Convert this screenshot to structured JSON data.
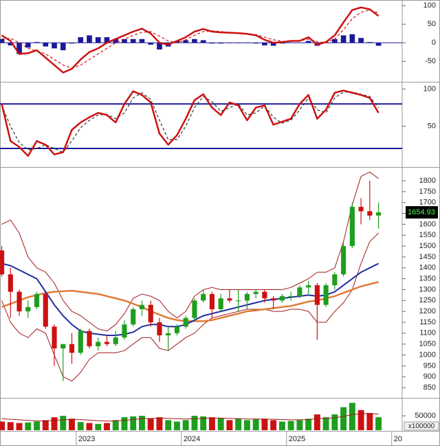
{
  "chart_data": [
    {
      "type": "macd",
      "ylim": [
        -103,
        115
      ],
      "yticks": [
        100,
        50,
        0,
        -50
      ],
      "zero_line_color": "#1a1a9a",
      "series": [
        {
          "style": "histogram",
          "color": "#1a1a9a",
          "values": [
            10,
            -7,
            -30,
            -13,
            2,
            -10,
            -15,
            -20,
            -2,
            15,
            20,
            15,
            15,
            10,
            10,
            10,
            10,
            -5,
            -18,
            -10,
            5,
            7,
            10,
            7,
            -2,
            -2,
            -1,
            -1,
            -1,
            -2,
            -7,
            -8,
            -2,
            1,
            0,
            5,
            -8,
            2,
            10,
            20,
            23,
            13,
            2,
            -8
          ]
        },
        {
          "style": "dashed",
          "color": "#cc1111",
          "values": [
            10,
            12,
            0,
            -15,
            -22,
            -30,
            -45,
            -60,
            -68,
            -60,
            -45,
            -30,
            -15,
            0,
            10,
            20,
            28,
            30,
            18,
            5,
            0,
            8,
            20,
            30,
            32,
            30,
            28,
            27,
            25,
            22,
            15,
            8,
            4,
            4,
            5,
            10,
            3,
            0,
            10,
            35,
            65,
            82,
            88,
            80
          ]
        },
        {
          "style": "solid",
          "color": "#cc1111",
          "values": [
            20,
            5,
            -30,
            -28,
            -20,
            -40,
            -60,
            -80,
            -70,
            -45,
            -25,
            -15,
            0,
            10,
            20,
            30,
            38,
            25,
            0,
            -5,
            5,
            15,
            30,
            37,
            30,
            28,
            27,
            26,
            24,
            20,
            8,
            0,
            2,
            5,
            5,
            15,
            -5,
            2,
            20,
            55,
            88,
            95,
            90,
            72
          ]
        }
      ]
    },
    {
      "type": "oscillator",
      "ylim": [
        -4,
        107
      ],
      "yticks": [
        100,
        50
      ],
      "levels": [
        80,
        20
      ],
      "level_color": "#1a1a9a",
      "series": [
        {
          "style": "dashed",
          "color": "#333333",
          "values": [
            78,
            50,
            28,
            18,
            20,
            25,
            20,
            15,
            30,
            48,
            58,
            65,
            66,
            60,
            68,
            88,
            95,
            86,
            58,
            32,
            32,
            50,
            75,
            90,
            83,
            70,
            75,
            80,
            65,
            68,
            77,
            62,
            54,
            58,
            72,
            88,
            72,
            68,
            88,
            96,
            96,
            93,
            90,
            75
          ]
        },
        {
          "style": "solid",
          "color": "#cc1111",
          "values": [
            80,
            30,
            22,
            10,
            30,
            25,
            12,
            15,
            45,
            55,
            62,
            68,
            65,
            55,
            80,
            97,
            92,
            82,
            40,
            25,
            38,
            60,
            85,
            93,
            75,
            65,
            82,
            78,
            58,
            75,
            78,
            52,
            56,
            60,
            80,
            92,
            60,
            72,
            95,
            98,
            95,
            92,
            88,
            68
          ]
        }
      ]
    },
    {
      "type": "candlestick",
      "ylim": [
        806,
        1860
      ],
      "yticks": [
        850,
        900,
        950,
        1000,
        1050,
        1100,
        1150,
        1200,
        1250,
        1300,
        1350,
        1400,
        1450,
        1500,
        1550,
        1600,
        1650,
        1700,
        1750,
        1800
      ],
      "up_color": "#1e9e1e",
      "down_color": "#cc1111",
      "open": [
        1480,
        1370,
        1290,
        1200,
        1220,
        1280,
        1130,
        1030,
        1050,
        1010,
        1110,
        1040,
        1060,
        1050,
        1080,
        1140,
        1210,
        1230,
        1150,
        1090,
        1100,
        1130,
        1170,
        1250,
        1280,
        1210,
        1260,
        1250,
        1250,
        1280,
        1290,
        1260,
        1250,
        1270,
        1270,
        1310,
        1320,
        1230,
        1320,
        1370,
        1500,
        1680,
        1660,
        1640
      ],
      "high": [
        1500,
        1400,
        1300,
        1250,
        1290,
        1290,
        1140,
        1050,
        1100,
        1120,
        1120,
        1080,
        1090,
        1110,
        1160,
        1220,
        1250,
        1250,
        1170,
        1130,
        1140,
        1180,
        1260,
        1300,
        1290,
        1280,
        1300,
        1300,
        1290,
        1300,
        1300,
        1270,
        1280,
        1290,
        1320,
        1340,
        1330,
        1330,
        1380,
        1520,
        1700,
        1720,
        1800,
        1700
      ],
      "low": [
        1360,
        1170,
        1180,
        1170,
        1210,
        1120,
        950,
        880,
        960,
        1000,
        1030,
        1020,
        1040,
        1040,
        1070,
        1130,
        1180,
        1130,
        1060,
        1020,
        1090,
        1120,
        1160,
        1240,
        1170,
        1200,
        1240,
        1200,
        1210,
        1260,
        1240,
        1210,
        1240,
        1250,
        1260,
        1280,
        1070,
        1220,
        1300,
        1360,
        1490,
        1600,
        1620,
        1580
      ],
      "close": [
        1370,
        1290,
        1200,
        1220,
        1280,
        1130,
        1030,
        1050,
        1010,
        1110,
        1040,
        1060,
        1050,
        1080,
        1140,
        1210,
        1230,
        1150,
        1090,
        1100,
        1130,
        1170,
        1250,
        1280,
        1210,
        1260,
        1250,
        1250,
        1280,
        1290,
        1260,
        1250,
        1270,
        1270,
        1310,
        1320,
        1230,
        1320,
        1370,
        1500,
        1680,
        1660,
        1640,
        1654.93
      ],
      "series": [
        {
          "color": "#a01818",
          "width": 1,
          "values": [
            1600,
            1620,
            1560,
            1450,
            1400,
            1380,
            1330,
            1250,
            1200,
            1180,
            1150,
            1120,
            1110,
            1140,
            1190,
            1260,
            1280,
            1270,
            1250,
            1200,
            1170,
            1200,
            1270,
            1300,
            1310,
            1300,
            1300,
            1300,
            1300,
            1300,
            1300,
            1300,
            1300,
            1310,
            1330,
            1350,
            1380,
            1380,
            1400,
            1520,
            1690,
            1820,
            1840,
            1810
          ]
        },
        {
          "color": "#a01818",
          "width": 1,
          "values": [
            1250,
            1150,
            1100,
            1080,
            1120,
            1100,
            1000,
            900,
            880,
            920,
            980,
            1010,
            1010,
            1010,
            1020,
            1050,
            1080,
            1080,
            1030,
            1020,
            1050,
            1080,
            1100,
            1140,
            1170,
            1180,
            1190,
            1200,
            1210,
            1210,
            1210,
            1200,
            1200,
            1210,
            1210,
            1200,
            1150,
            1150,
            1200,
            1240,
            1300,
            1420,
            1520,
            1560
          ]
        },
        {
          "color": "#e07b39",
          "width": 2.5,
          "values": [
            1220,
            1235,
            1250,
            1265,
            1275,
            1285,
            1290,
            1293,
            1295,
            1290,
            1285,
            1280,
            1270,
            1260,
            1250,
            1235,
            1220,
            1200,
            1185,
            1170,
            1160,
            1155,
            1155,
            1155,
            1160,
            1170,
            1180,
            1190,
            1200,
            1205,
            1210,
            1215,
            1220,
            1225,
            1235,
            1245,
            1250,
            1260,
            1270,
            1285,
            1300,
            1315,
            1325,
            1335
          ]
        },
        {
          "color": "#1f2ea0",
          "width": 2,
          "values": [
            1420,
            1410,
            1390,
            1370,
            1350,
            1290,
            1230,
            1180,
            1140,
            1110,
            1100,
            1095,
            1090,
            1090,
            1095,
            1105,
            1130,
            1140,
            1140,
            1130,
            1130,
            1140,
            1160,
            1180,
            1190,
            1200,
            1210,
            1220,
            1230,
            1240,
            1250,
            1255,
            1260,
            1265,
            1270,
            1275,
            1270,
            1275,
            1290,
            1320,
            1350,
            1380,
            1400,
            1420
          ]
        }
      ]
    },
    {
      "type": "volume",
      "ylim": [
        0,
        110000
      ],
      "yticks": [
        50000
      ],
      "unit_label": "x100000",
      "values": [
        30000,
        28000,
        25000,
        27000,
        30000,
        35000,
        45000,
        50000,
        40000,
        28000,
        25000,
        22000,
        25000,
        35000,
        45000,
        48000,
        50000,
        40000,
        45000,
        35000,
        30000,
        35000,
        50000,
        48000,
        45000,
        42000,
        35000,
        40000,
        35000,
        38000,
        40000,
        35000,
        30000,
        32000,
        35000,
        40000,
        55000,
        45000,
        55000,
        80000,
        95000,
        70000,
        60000,
        45000
      ],
      "series": [
        {
          "color": "#a01818",
          "width": 1,
          "values": [
            40000,
            38000,
            36000,
            34000,
            32000,
            32000,
            34000,
            36000,
            38000,
            37000,
            35000,
            33000,
            32000,
            32000,
            34000,
            37000,
            40000,
            41000,
            42000,
            41000,
            40000,
            39000,
            40000,
            41000,
            42000,
            42000,
            41000,
            40000,
            39000,
            39000,
            39000,
            38000,
            37000,
            36000,
            36000,
            37000,
            40000,
            41000,
            43000,
            48000,
            54000,
            57000,
            58000,
            56000
          ]
        }
      ],
      "xlim": [
        -0.2,
        45.7
      ],
      "xticks": [
        {
          "value": 8.5,
          "label": "2023"
        },
        {
          "value": 20.5,
          "label": "2024"
        },
        {
          "value": 32.5,
          "label": "2025"
        },
        {
          "value": 44.5,
          "label": "20"
        }
      ]
    }
  ]
}
